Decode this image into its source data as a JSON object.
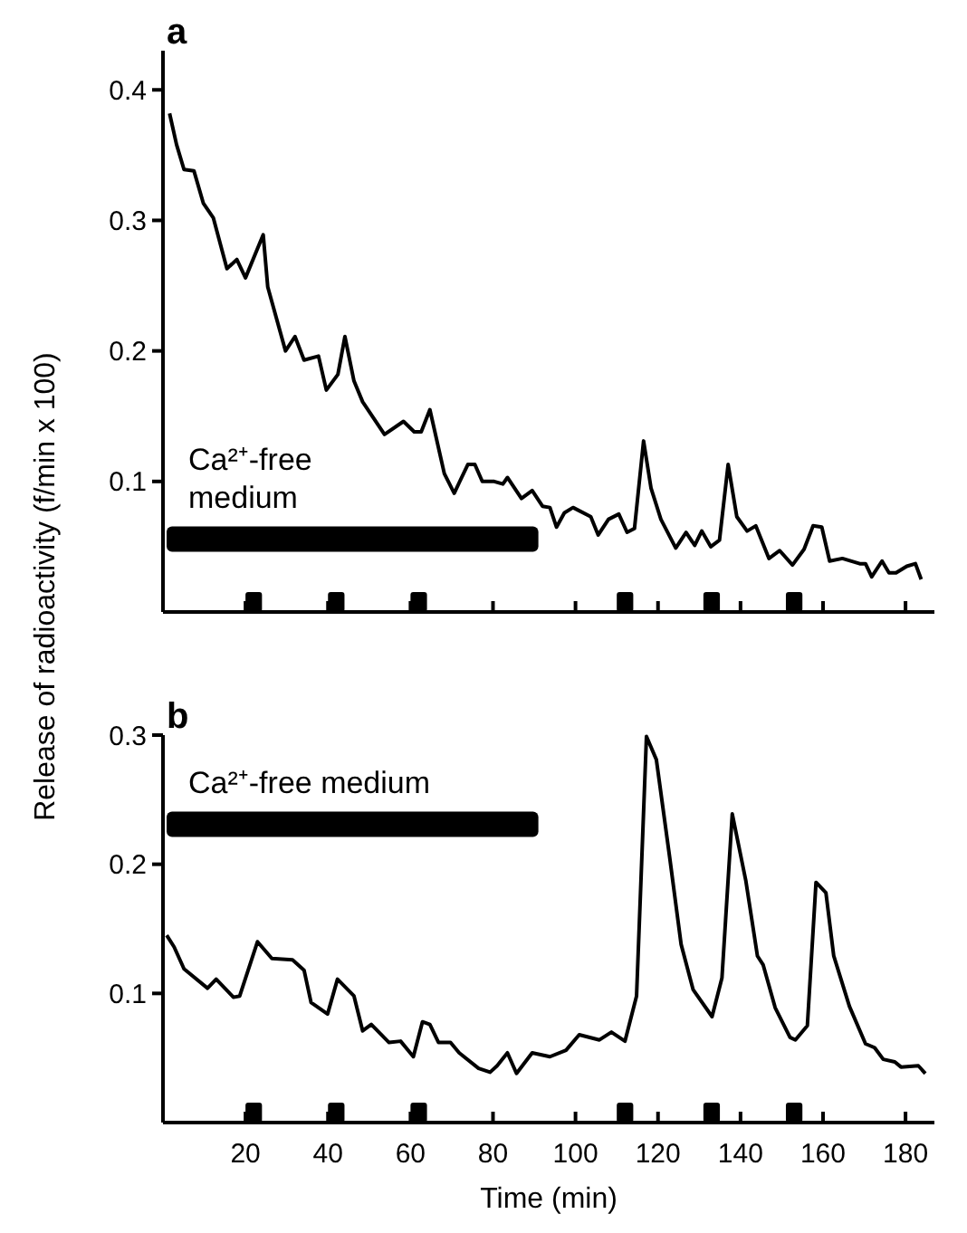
{
  "chart_data": [
    {
      "type": "line",
      "title": "a",
      "ylabel": "Release of radioactivity (f/min x 100)",
      "xlim": [
        0,
        187
      ],
      "ylim": [
        0,
        0.43
      ],
      "xticks": [
        {
          "value": 20,
          "label": null
        },
        {
          "value": 40,
          "label": null
        },
        {
          "value": 60,
          "label": null
        },
        {
          "value": 80,
          "label": null
        },
        {
          "value": 100,
          "label": null
        },
        {
          "value": 120,
          "label": null
        },
        {
          "value": 140,
          "label": null
        },
        {
          "value": 160,
          "label": null
        },
        {
          "value": 180,
          "label": null
        }
      ],
      "yticks": [
        0.1,
        0.2,
        0.3,
        0.4
      ],
      "tick_labels": "y",
      "annotations": [
        "Ca²⁺-free medium"
      ],
      "series": [
        {
          "color": "#000000",
          "x": [
            1.6,
            3.3,
            5.1,
            7.5,
            9.8,
            12.2,
            15.5,
            17.9,
            20,
            24.3,
            25.4,
            29.7,
            32,
            34.2,
            37.7,
            39.6,
            42.4,
            44.1,
            46.3,
            48.4,
            53.7,
            58.3,
            60.9,
            62.6,
            64.7,
            68.2,
            70.6,
            73.9,
            75.6,
            77.4,
            80.3,
            82.4,
            83.5,
            86.9,
            89.5,
            92,
            93.8,
            95.4,
            97.3,
            99.4,
            103.7,
            105.5,
            108,
            110.5,
            112.5,
            114.3,
            116.5,
            118.3,
            120.7,
            124.3,
            126.8,
            128.9,
            130.6,
            132.8,
            134.9,
            137,
            139.1,
            141.6,
            143.7,
            146.9,
            149.5,
            152.6,
            155.4,
            157.6,
            159.7,
            161.6,
            164.7,
            168.9,
            170.3,
            171.8,
            174.3,
            176,
            177.7,
            180.3,
            182.4,
            183.8
          ],
          "values": [
            0.382,
            0.358,
            0.339,
            0.338,
            0.313,
            0.302,
            0.263,
            0.27,
            0.256,
            0.289,
            0.249,
            0.2,
            0.211,
            0.193,
            0.196,
            0.17,
            0.182,
            0.211,
            0.177,
            0.161,
            0.136,
            0.146,
            0.138,
            0.138,
            0.155,
            0.106,
            0.091,
            0.113,
            0.113,
            0.1,
            0.1,
            0.098,
            0.103,
            0.087,
            0.093,
            0.081,
            0.08,
            0.065,
            0.076,
            0.08,
            0.073,
            0.059,
            0.071,
            0.075,
            0.061,
            0.064,
            0.131,
            0.095,
            0.071,
            0.049,
            0.061,
            0.051,
            0.062,
            0.05,
            0.055,
            0.113,
            0.073,
            0.062,
            0.066,
            0.041,
            0.047,
            0.036,
            0.048,
            0.066,
            0.065,
            0.039,
            0.041,
            0.037,
            0.037,
            0.027,
            0.039,
            0.03,
            0.03,
            0.035,
            0.037,
            0.025
          ]
        }
      ]
    },
    {
      "type": "line",
      "title": "b",
      "xlabel": "Time (min)",
      "xlim": [
        0,
        187
      ],
      "ylim": [
        0,
        0.3
      ],
      "xticks": [
        20,
        40,
        60,
        80,
        100,
        120,
        140,
        160,
        180
      ],
      "yticks": [
        0.1,
        0.2,
        0.3
      ],
      "annotations": [
        "Ca²⁺-free medium"
      ],
      "series": [
        {
          "color": "#000000",
          "x": [
            0.9,
            2.7,
            5.1,
            10.8,
            12.9,
            17.1,
            18.6,
            22.9,
            26.4,
            31.4,
            34.2,
            35.9,
            39.9,
            42.3,
            46.3,
            48.4,
            50.5,
            54.8,
            57.6,
            60.7,
            62.9,
            64.7,
            66.8,
            69.7,
            71.8,
            76.5,
            79.3,
            81,
            83.5,
            85.7,
            89.5,
            93.8,
            97.7,
            100.9,
            105.8,
            108.7,
            112,
            114.8,
            117.2,
            119.6,
            122.8,
            125.6,
            128.5,
            133.1,
            135.5,
            138,
            141.3,
            144.1,
            145.5,
            148.4,
            152,
            153.3,
            156.2,
            158.3,
            160.7,
            162.6,
            166.4,
            170.3,
            172.5,
            174.6,
            177.4,
            178.9,
            183.1,
            184.8
          ],
          "values": [
            0.145,
            0.136,
            0.119,
            0.104,
            0.111,
            0.097,
            0.098,
            0.14,
            0.127,
            0.126,
            0.118,
            0.093,
            0.084,
            0.111,
            0.098,
            0.071,
            0.076,
            0.062,
            0.063,
            0.051,
            0.078,
            0.076,
            0.062,
            0.062,
            0.054,
            0.042,
            0.039,
            0.044,
            0.054,
            0.038,
            0.054,
            0.051,
            0.056,
            0.068,
            0.064,
            0.07,
            0.063,
            0.098,
            0.299,
            0.281,
            0.206,
            0.138,
            0.103,
            0.082,
            0.112,
            0.239,
            0.187,
            0.129,
            0.122,
            0.089,
            0.066,
            0.064,
            0.075,
            0.186,
            0.178,
            0.129,
            0.09,
            0.061,
            0.058,
            0.049,
            0.047,
            0.043,
            0.044,
            0.038
          ]
        }
      ]
    }
  ]
}
